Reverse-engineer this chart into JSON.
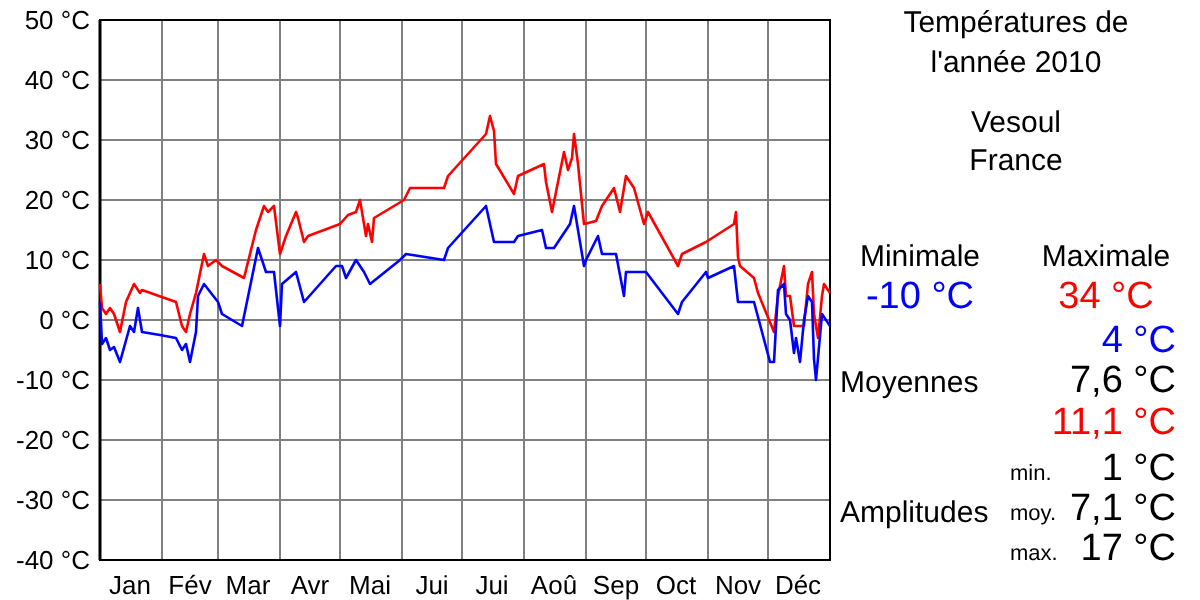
{
  "chart_data": {
    "type": "line",
    "title": "Températures de l'année 2010",
    "subtitle": "Vesoul France",
    "xlim": [
      "2010-01-01",
      "2011-01-01"
    ],
    "xticks": [
      {
        "value": "2010-01-01",
        "label": null
      },
      {
        "value": "2010-01-16",
        "label": "Jan"
      },
      {
        "value": "2010-02-01",
        "label": null
      },
      {
        "value": "2010-02-15",
        "label": "Fév"
      },
      {
        "value": "2010-03-01",
        "label": null
      },
      {
        "value": "2010-03-16",
        "label": "Mar"
      },
      {
        "value": "2010-04-01",
        "label": null
      },
      {
        "value": "2010-04-16",
        "label": "Avr"
      },
      {
        "value": "2010-05-01",
        "label": null
      },
      {
        "value": "2010-05-16",
        "label": "Mai"
      },
      {
        "value": "2010-06-01",
        "label": null
      },
      {
        "value": "2010-06-16",
        "label": "Jui"
      },
      {
        "value": "2010-07-01",
        "label": null
      },
      {
        "value": "2010-07-16",
        "label": "Jui"
      },
      {
        "value": "2010-08-01",
        "label": null
      },
      {
        "value": "2010-08-16",
        "label": "Aoû"
      },
      {
        "value": "2010-09-01",
        "label": null
      },
      {
        "value": "2010-09-16",
        "label": "Sep"
      },
      {
        "value": "2010-10-01",
        "label": null
      },
      {
        "value": "2010-10-16",
        "label": "Oct"
      },
      {
        "value": "2010-11-01",
        "label": null
      },
      {
        "value": "2010-11-16",
        "label": "Nov"
      },
      {
        "value": "2010-12-01",
        "label": null
      },
      {
        "value": "2010-12-16",
        "label": "Déc"
      },
      {
        "value": "2011-01-01",
        "label": null
      }
    ],
    "ylim": [
      -40,
      50
    ],
    "yticks": [
      {
        "value": -40,
        "label": "-40 °C"
      },
      {
        "value": -30,
        "label": "-30 °C"
      },
      {
        "value": -20,
        "label": "-20 °C"
      },
      {
        "value": -10,
        "label": "-10 °C"
      },
      {
        "value": 0,
        "label": "0 °C"
      },
      {
        "value": 10,
        "label": "10 °C"
      },
      {
        "value": 20,
        "label": "20 °C"
      },
      {
        "value": 30,
        "label": "30 °C"
      },
      {
        "value": 40,
        "label": "40 °C"
      },
      {
        "value": 50,
        "label": "50 °C"
      }
    ],
    "grid": true,
    "marker": "none",
    "line_style": "solid",
    "series": [
      {
        "color": "#ff0000",
        "x": [
          "2010-01-01",
          "2010-01-02",
          "2010-01-04",
          "2010-01-06",
          "2010-01-08",
          "2010-01-11",
          "2010-01-14",
          "2010-01-18",
          "2010-01-21",
          "2010-01-22",
          "2010-02-08",
          "2010-02-11",
          "2010-02-13",
          "2010-02-15",
          "2010-02-18",
          "2010-02-22",
          "2010-02-24",
          "2010-02-28",
          "2010-03-03",
          "2010-03-14",
          "2010-03-20",
          "2010-03-24",
          "2010-03-26",
          "2010-03-29",
          "2010-04-01",
          "2010-04-04",
          "2010-04-09",
          "2010-04-10",
          "2010-04-13",
          "2010-04-15",
          "2010-05-01",
          "2010-05-05",
          "2010-05-09",
          "2010-05-11",
          "2010-05-12",
          "2010-05-14",
          "2010-05-15",
          "2010-05-17",
          "2010-05-18",
          "2010-06-02",
          "2010-06-05",
          "2010-06-22",
          "2010-06-24",
          "2010-07-13",
          "2010-07-15",
          "2010-07-17",
          "2010-07-18",
          "2010-07-27",
          "2010-07-29",
          "2010-08-11",
          "2010-08-12",
          "2010-08-15",
          "2010-08-21",
          "2010-08-23",
          "2010-08-25",
          "2010-08-26",
          "2010-08-28",
          "2010-08-31",
          "2010-09-06",
          "2010-09-09",
          "2010-09-15",
          "2010-09-18",
          "2010-09-21",
          "2010-09-25",
          "2010-09-30",
          "2010-10-02",
          "2010-10-17",
          "2010-10-19",
          "2010-10-31",
          "2010-11-14",
          "2010-11-15",
          "2010-11-16",
          "2010-11-17",
          "2010-11-24",
          "2010-11-26",
          "2010-12-04",
          "2010-12-06",
          "2010-12-09",
          "2010-12-10",
          "2010-12-12",
          "2010-12-14",
          "2010-12-19",
          "2010-12-21",
          "2010-12-23",
          "2010-12-24",
          "2010-12-26",
          "2010-12-28",
          "2010-12-29",
          "2011-01-01"
        ],
        "values": [
          6,
          2,
          1,
          2,
          1,
          -2,
          3,
          6,
          4.5,
          5,
          3,
          -1,
          -2,
          1,
          4.5,
          11,
          9,
          10,
          9,
          7,
          15,
          19,
          18,
          19,
          11,
          14,
          18,
          17,
          13,
          14,
          16,
          17.5,
          18,
          20,
          18,
          14,
          16,
          13,
          17,
          20,
          22,
          22,
          24,
          31,
          34,
          31.5,
          26,
          21,
          24,
          26,
          23,
          18,
          28,
          25,
          27,
          31,
          26,
          16,
          16.5,
          19,
          22,
          18,
          24,
          22,
          16,
          18,
          9,
          11,
          13,
          16,
          18,
          10.5,
          9,
          7,
          4.5,
          -2,
          4,
          9,
          4,
          4,
          -1,
          -1,
          6,
          8,
          1,
          -3,
          4,
          6,
          4.5
        ]
      },
      {
        "color": "#0000ff",
        "x": [
          "2010-01-01",
          "2010-01-02",
          "2010-01-04",
          "2010-01-06",
          "2010-01-08",
          "2010-01-11",
          "2010-01-16",
          "2010-01-18",
          "2010-01-20",
          "2010-01-22",
          "2010-01-31",
          "2010-02-08",
          "2010-02-11",
          "2010-02-13",
          "2010-02-15",
          "2010-02-18",
          "2010-02-19",
          "2010-02-22",
          "2010-03-01",
          "2010-03-03",
          "2010-03-13",
          "2010-03-21",
          "2010-03-25",
          "2010-03-29",
          "2010-04-01",
          "2010-04-02",
          "2010-04-09",
          "2010-04-13",
          "2010-04-29",
          "2010-05-02",
          "2010-05-04",
          "2010-05-09",
          "2010-05-13",
          "2010-05-16",
          "2010-05-31",
          "2010-06-03",
          "2010-06-22",
          "2010-06-24",
          "2010-07-13",
          "2010-07-17",
          "2010-07-27",
          "2010-07-29",
          "2010-08-10",
          "2010-08-12",
          "2010-08-16",
          "2010-08-24",
          "2010-08-26",
          "2010-08-28",
          "2010-08-31",
          "2010-09-01",
          "2010-09-07",
          "2010-09-09",
          "2010-09-16",
          "2010-09-20",
          "2010-09-21",
          "2010-10-01",
          "2010-10-17",
          "2010-10-19",
          "2010-10-31",
          "2010-11-01",
          "2010-11-14",
          "2010-11-16",
          "2010-11-24",
          "2010-12-02",
          "2010-12-04",
          "2010-12-06",
          "2010-12-09",
          "2010-12-10",
          "2010-12-12",
          "2010-12-14",
          "2010-12-15",
          "2010-12-17",
          "2010-12-19",
          "2010-12-21",
          "2010-12-23",
          "2010-12-24",
          "2010-12-25",
          "2010-12-28",
          "2010-12-30",
          "2011-01-01"
        ],
        "values": [
          3,
          -4,
          -3,
          -5,
          -4.5,
          -7,
          -1,
          -2,
          2,
          -2,
          -2.5,
          -3,
          -5,
          -4,
          -7,
          -2,
          4,
          6,
          3,
          1,
          -1,
          12,
          8,
          8,
          -1,
          6,
          8,
          3,
          9,
          9,
          7,
          10,
          8,
          6,
          10,
          11,
          10,
          12,
          19,
          13,
          13,
          14,
          15,
          12,
          12,
          16,
          19,
          15,
          9,
          10,
          14,
          11,
          11,
          4,
          8,
          8,
          1,
          3,
          8,
          7,
          9,
          3,
          3,
          -7,
          -7,
          5,
          6,
          1,
          0,
          -5.5,
          -3,
          -7,
          0,
          4,
          3,
          -6.5,
          -10,
          1,
          0,
          -1
        ]
      }
    ],
    "annotations": [
      "Minimale",
      "Maximale",
      "-10 °C",
      "34 °C",
      "4 °C",
      "Moyennes",
      "7,6 °C",
      "11,1 °C",
      "min.",
      "1 °C",
      "Amplitudes",
      "moy.",
      "7,1 °C",
      "max.",
      "17 °C"
    ]
  }
}
